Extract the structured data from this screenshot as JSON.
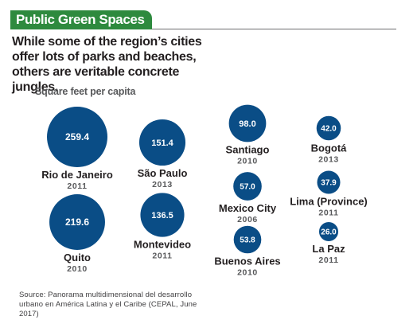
{
  "header": {
    "title": "Public Green Spaces",
    "subtitle": "While some of the region’s cities offer lots of parks and beaches, others are veritable concrete jungles."
  },
  "colors": {
    "header_green": "#2e8a3e",
    "bubble_blue": "#0a4d86",
    "rule_gray": "#6d6e70"
  },
  "chart_data": {
    "type": "bubble",
    "unit_label": "Square feet per capita",
    "points": [
      {
        "city": "Rio de Janeiro",
        "value": 259.4,
        "value_label": "259.4",
        "year": "2011"
      },
      {
        "city": "Quito",
        "value": 219.6,
        "value_label": "219.6",
        "year": "2010"
      },
      {
        "city": "São Paulo",
        "value": 151.4,
        "value_label": "151.4",
        "year": "2013"
      },
      {
        "city": "Montevideo",
        "value": 136.5,
        "value_label": "136.5",
        "year": "2011"
      },
      {
        "city": "Santiago",
        "value": 98.0,
        "value_label": "98.0",
        "year": "2010"
      },
      {
        "city": "Mexico City",
        "value": 57.0,
        "value_label": "57.0",
        "year": "2006"
      },
      {
        "city": "Buenos Aires",
        "value": 53.8,
        "value_label": "53.8",
        "year": "2010"
      },
      {
        "city": "Bogotá",
        "value": 42.0,
        "value_label": "42.0",
        "year": "2013"
      },
      {
        "city": "Lima (Province)",
        "value": 37.9,
        "value_label": "37.9",
        "year": "2011"
      },
      {
        "city": "La Paz",
        "value": 26.0,
        "value_label": "26.0",
        "year": "2011"
      }
    ]
  },
  "source": "Source: Panorama multidimensional del desarrollo urbano en América Latina y el Caribe (CEPAL, June 2017)"
}
